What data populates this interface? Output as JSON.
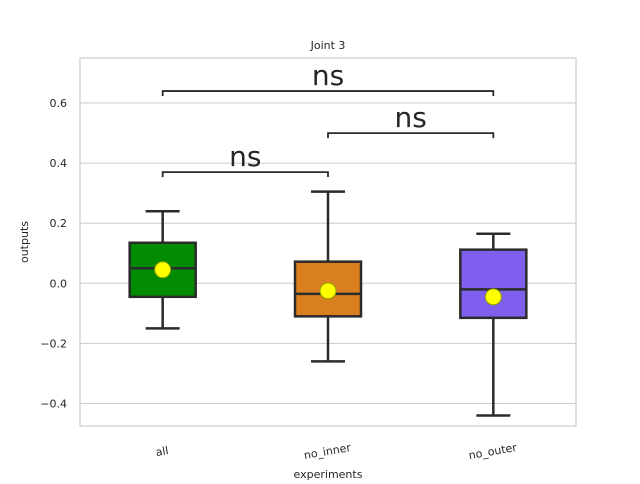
{
  "chart_data": {
    "type": "box",
    "title": "Joint 3",
    "xlabel": "experiments",
    "ylabel": "outputs",
    "ylim": [
      -0.475,
      0.75
    ],
    "yticks": [
      -0.4,
      -0.2,
      0.0,
      0.2,
      0.4,
      0.6
    ],
    "ytick_labels": [
      "−0.4",
      "−0.2",
      "0.0",
      "0.2",
      "0.4",
      "0.6"
    ],
    "grid": true,
    "categories": [
      "all",
      "no_inner",
      "no_outer"
    ],
    "boxes": [
      {
        "category": "all",
        "color": "#008b00",
        "whisker_low": -0.15,
        "q1": -0.045,
        "median": 0.05,
        "q3": 0.135,
        "whisker_high": 0.24,
        "mean": 0.045
      },
      {
        "category": "no_inner",
        "color": "#d97f20",
        "whisker_low": -0.26,
        "q1": -0.11,
        "median": -0.035,
        "q3": 0.072,
        "whisker_high": 0.305,
        "mean": -0.025
      },
      {
        "category": "no_outer",
        "color": "#7f5fee",
        "whisker_low": -0.44,
        "q1": -0.115,
        "median": -0.02,
        "q3": 0.112,
        "whisker_high": 0.165,
        "mean": -0.045
      }
    ],
    "mean_marker_color": "#ffff00",
    "annotations": [
      {
        "from": "all",
        "to": "no_inner",
        "y": 0.37,
        "text": "ns"
      },
      {
        "from": "no_inner",
        "to": "no_outer",
        "y": 0.5,
        "text": "ns"
      },
      {
        "from": "all",
        "to": "no_outer",
        "y": 0.64,
        "text": "ns"
      }
    ]
  }
}
